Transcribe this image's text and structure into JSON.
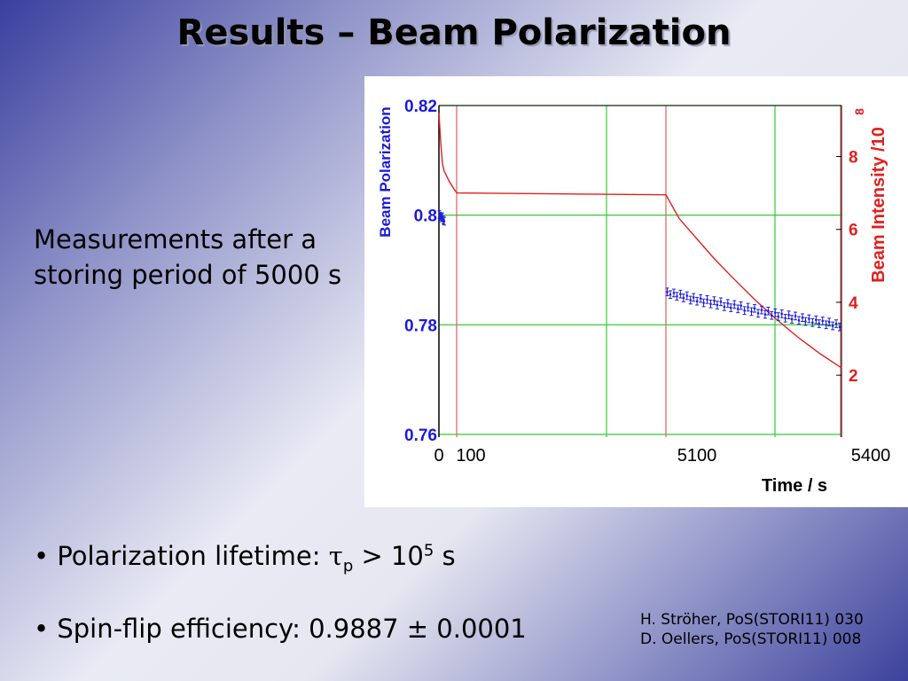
{
  "slide": {
    "title": "Results – Beam Polarization",
    "description": "Measurements after a storing period of 5000 s",
    "bullets": [
      {
        "prefix": "• Polarization lifetime: ",
        "tau": "τ",
        "tau_sub": "p",
        "mid": " > 10",
        "exp": "5",
        "suffix": " s"
      },
      {
        "text": "• Spin-flip efficiency: 0.9887 ± 0.0001"
      }
    ],
    "references": [
      "H. Ströher, PoS(STORI11) 030",
      "D. Oellers, PoS(STORI11) 008"
    ]
  },
  "chart_data": {
    "type": "scatter",
    "xlabel": "Time / s",
    "ylabel_left": "Beam Polarization",
    "ylabel_right": "Beam Intensity /10",
    "ylabel_right_exp": "8",
    "x_ticks": [
      "0",
      "100",
      "5100",
      "5400"
    ],
    "y_left_ticks": [
      "0.82",
      "0.8",
      "0.78",
      "0.76"
    ],
    "y_left_range": [
      0.7595,
      0.82
    ],
    "y_right_ticks": [
      "8",
      "6",
      "4",
      "2"
    ],
    "y_right_range": [
      0.3,
      9.4
    ],
    "x_axis": "broken scale: 0–100, gap, 5000–5400 (s)",
    "colors": {
      "polarization": "#1a1adb",
      "intensity": "#e0201e",
      "grid": "#33cc33",
      "marker_lines": "#e06060"
    },
    "series": [
      {
        "axis": "left",
        "style": "points with error bars",
        "x": [
          3,
          8,
          14,
          19,
          24,
          30,
          5003,
          5010,
          5018,
          5025,
          5033,
          5040,
          5048,
          5056,
          5063,
          5071,
          5079,
          5086,
          5094,
          5102,
          5110,
          5117,
          5125,
          5133,
          5141,
          5148,
          5156,
          5164,
          5171,
          5179,
          5187,
          5195,
          5202,
          5210,
          5218,
          5226,
          5233,
          5241,
          5249,
          5256,
          5264,
          5272,
          5280,
          5287,
          5295,
          5303,
          5311,
          5318,
          5326,
          5334,
          5342,
          5349,
          5357,
          5365,
          5372,
          5380,
          5388,
          5396
        ],
        "y": [
          0.8001,
          0.7998,
          0.7995,
          0.7997,
          0.7991,
          0.7989,
          0.786,
          0.7855,
          0.7858,
          0.7852,
          0.7856,
          0.7849,
          0.7853,
          0.7845,
          0.785,
          0.7843,
          0.7848,
          0.784,
          0.7846,
          0.7838,
          0.7844,
          0.7836,
          0.7842,
          0.7833,
          0.7839,
          0.7831,
          0.7837,
          0.7829,
          0.7835,
          0.7826,
          0.7832,
          0.7824,
          0.783,
          0.7821,
          0.7827,
          0.7819,
          0.7825,
          0.7817,
          0.7822,
          0.7815,
          0.782,
          0.7812,
          0.7818,
          0.781,
          0.7816,
          0.7808,
          0.7813,
          0.7806,
          0.7811,
          0.7804,
          0.7809,
          0.7802,
          0.7807,
          0.78,
          0.7805,
          0.7798,
          0.7802,
          0.7796
        ],
        "err": 0.0007
      },
      {
        "axis": "right",
        "style": "line",
        "x": [
          0,
          10,
          20,
          30,
          40,
          60,
          80,
          100,
          5000,
          5030,
          5070,
          5110,
          5150,
          5200,
          5250,
          5300,
          5350,
          5400
        ],
        "y": [
          9.2,
          8.4,
          7.8,
          7.6,
          7.5,
          7.3,
          7.15,
          7.0,
          6.95,
          6.3,
          5.75,
          5.2,
          4.7,
          4.1,
          3.55,
          3.05,
          2.6,
          2.2
        ]
      }
    ]
  }
}
